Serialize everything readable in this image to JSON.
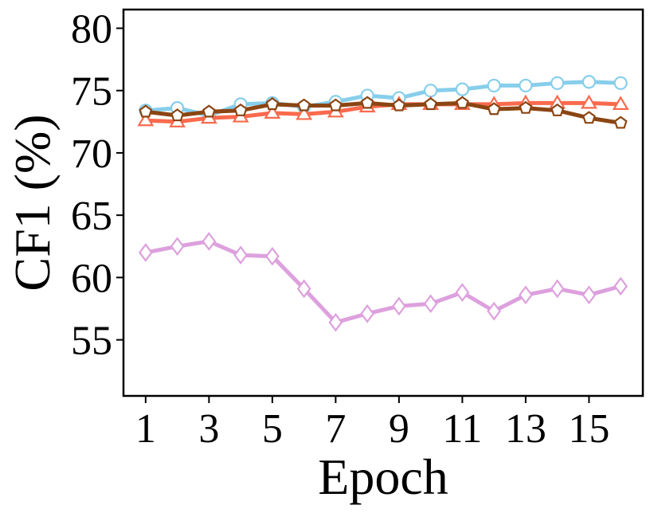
{
  "chart_data": {
    "type": "line",
    "xlabel": "Epoch",
    "ylabel": "CF1 (%)",
    "x": [
      1,
      2,
      3,
      4,
      5,
      6,
      7,
      8,
      9,
      10,
      11,
      12,
      13,
      14,
      15,
      16
    ],
    "xticks": [
      "1",
      "3",
      "5",
      "7",
      "9",
      "11",
      "13",
      "15"
    ],
    "yticks": [
      "55",
      "60",
      "65",
      "70",
      "75",
      "80"
    ],
    "xlim": [
      0.3,
      16.7
    ],
    "ylim": [
      50.5,
      81.5
    ],
    "grid": false,
    "legend": "none",
    "series": [
      {
        "color": "#87ceeb",
        "marker": "circle",
        "values": [
          73.4,
          73.6,
          73.0,
          73.9,
          74.0,
          73.7,
          74.1,
          74.6,
          74.4,
          75.0,
          75.1,
          75.4,
          75.4,
          75.6,
          75.7,
          75.6
        ]
      },
      {
        "color": "#f96a4c",
        "marker": "triangle",
        "values": [
          72.6,
          72.5,
          72.8,
          72.9,
          73.2,
          73.1,
          73.3,
          73.7,
          73.9,
          73.9,
          73.9,
          73.9,
          74.0,
          74.0,
          74.0,
          73.9
        ]
      },
      {
        "color": "#8b4513",
        "marker": "pentagon",
        "values": [
          73.3,
          73.0,
          73.3,
          73.4,
          73.9,
          73.8,
          73.8,
          74.0,
          73.8,
          73.9,
          74.0,
          73.5,
          73.6,
          73.4,
          72.8,
          72.4
        ]
      },
      {
        "color": "#dda0dd",
        "marker": "diamond",
        "values": [
          62.0,
          62.5,
          62.9,
          61.8,
          61.7,
          59.1,
          56.4,
          57.1,
          57.7,
          57.9,
          58.8,
          57.3,
          58.6,
          59.1,
          58.6,
          59.3
        ]
      }
    ]
  }
}
